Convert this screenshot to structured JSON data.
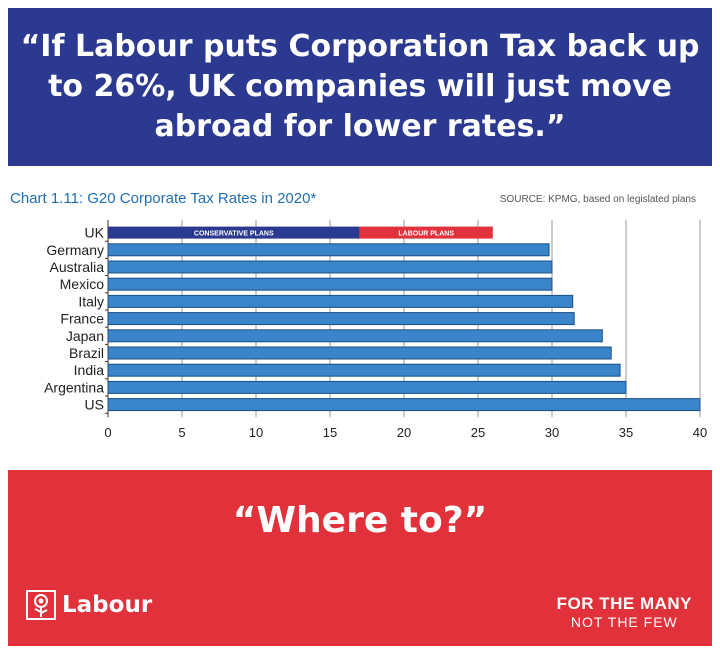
{
  "headline": "“If Labour puts Corporation Tax back up to 26%, UK companies will just move abroad for lower rates.”",
  "chart_data": {
    "type": "bar",
    "orientation": "horizontal",
    "title": "Chart 1.11: G20 Corporate Tax Rates in 2020*",
    "source": "SOURCE: KPMG, based on legislated plans",
    "categories": [
      "UK",
      "Germany",
      "Australia",
      "Mexico",
      "Italy",
      "France",
      "Japan",
      "Brazil",
      "India",
      "Argentina",
      "US"
    ],
    "values": [
      17,
      29.8,
      30,
      30,
      31.4,
      31.5,
      33.4,
      34,
      34.6,
      35,
      40
    ],
    "xlim": [
      0,
      40
    ],
    "xticks": [
      0,
      5,
      10,
      15,
      20,
      25,
      30,
      35,
      40
    ],
    "grid": true,
    "uk_segments": [
      {
        "label": "CONSERVATIVE PLANS",
        "start": 0,
        "end": 17,
        "color": "#2b3990"
      },
      {
        "label": "LABOUR PLANS",
        "start": 17,
        "end": 26,
        "color": "#e1313a"
      }
    ],
    "bar_color": "#3a84c9",
    "bar_edge_color": "#1d4f86"
  },
  "bottom": {
    "question": "“Where to?”",
    "logo_text": "Labour",
    "slogan_line1": "FOR THE MANY",
    "slogan_line2": "NOT THE FEW"
  },
  "colors": {
    "top_banner": "#2b3990",
    "bottom_banner": "#e1313a",
    "title": "#1f6fb5"
  }
}
